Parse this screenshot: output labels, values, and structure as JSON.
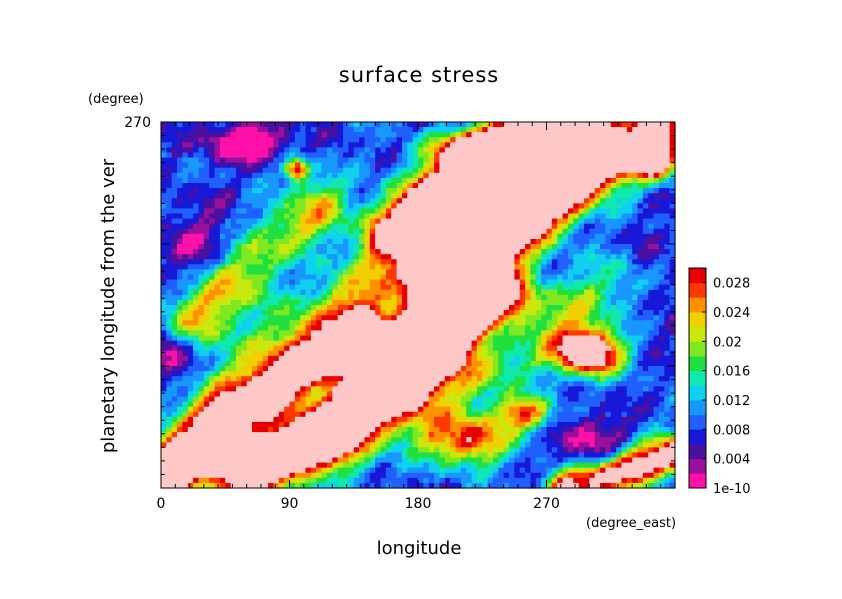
{
  "chart_data": {
    "type": "heatmap",
    "title": "surface stress",
    "xlabel": "longitude",
    "x_units": "(degree_east)",
    "ylabel": "planetary longitude from the ver",
    "y_units": "(degree)",
    "x_ticks": [
      0,
      90,
      180,
      270
    ],
    "x_tick_labels": [
      "0",
      "90",
      "180",
      "270"
    ],
    "y_ticks": [
      270
    ],
    "y_tick_labels": [
      "270"
    ],
    "xlim": [
      0,
      360
    ],
    "ylim": [
      0,
      270
    ],
    "colorbar": {
      "levels": [
        0,
        0.002,
        0.004,
        0.006,
        0.008,
        0.01,
        0.012,
        0.014,
        0.016,
        0.018,
        0.02,
        0.022,
        0.024,
        0.026,
        0.028,
        0.03
      ],
      "colors": [
        "#ff10a8",
        "#9a109c",
        "#4a10a0",
        "#1818d8",
        "#2060ff",
        "#1898ff",
        "#10d0f0",
        "#10e8b0",
        "#20e040",
        "#80e820",
        "#c8e810",
        "#f0d000",
        "#ff9000",
        "#ff3800",
        "#e80000",
        "#ffc8c8"
      ],
      "tick_values": [
        0,
        0.004,
        0.008,
        0.012,
        0.016,
        0.02,
        0.024,
        0.028
      ],
      "tick_labels": [
        "1e-10",
        "0.004",
        "0.008",
        "0.012",
        "0.016",
        "0.02",
        "0.024",
        "0.028"
      ]
    },
    "bands": [
      {
        "x": [
          125,
          290
        ],
        "y": [
          40,
          265
        ],
        "peak": 0.026,
        "width": 18
      },
      {
        "x": [
          195,
          345
        ],
        "y": [
          160,
          265
        ],
        "peak": 0.032,
        "width": 16
      },
      {
        "x": [
          160,
          265
        ],
        "y": [
          190,
          275
        ],
        "peak": 0.031,
        "width": 14
      },
      {
        "x": [
          0,
          140
        ],
        "y": [
          15,
          115
        ],
        "peak": 0.031,
        "width": 13
      },
      {
        "x": [
          60,
          240
        ],
        "y": [
          0,
          140
        ],
        "peak": 0.029,
        "width": 14
      },
      {
        "x": [
          0,
          95
        ],
        "y": [
          10,
          30
        ],
        "peak": 0.024,
        "width": 10
      },
      {
        "x": [
          285,
          360
        ],
        "y": [
          0,
          25
        ],
        "peak": 0.032,
        "width": 10
      },
      {
        "x": [
          20,
          110
        ],
        "y": [
          120,
          205
        ],
        "peak": 0.018,
        "width": 16
      },
      {
        "x": [
          40,
          200
        ],
        "y": [
          60,
          200
        ],
        "peak": 0.015,
        "width": 20
      },
      {
        "x": [
          180,
          320
        ],
        "y": [
          60,
          150
        ],
        "peak": 0.014,
        "width": 18
      }
    ],
    "blobs": [
      {
        "x": 300,
        "y": 100,
        "peak": 0.033,
        "rx": 22,
        "ry": 16
      },
      {
        "x": 235,
        "y": 250,
        "peak": 0.029,
        "rx": 40,
        "ry": 12
      },
      {
        "x": 345,
        "y": 242,
        "peak": 0.03,
        "rx": 14,
        "ry": 12
      },
      {
        "x": 95,
        "y": 235,
        "peak": 0.022,
        "rx": 8,
        "ry": 8
      },
      {
        "x": 205,
        "y": 150,
        "peak": 0.022,
        "rx": 20,
        "ry": 10
      },
      {
        "x": 215,
        "y": 35,
        "peak": 0.02,
        "rx": 30,
        "ry": 18
      },
      {
        "x": 255,
        "y": 55,
        "peak": 0.018,
        "rx": 20,
        "ry": 12
      },
      {
        "x": 60,
        "y": 255,
        "peak": -0.012,
        "rx": 28,
        "ry": 14
      },
      {
        "x": 10,
        "y": 100,
        "peak": -0.012,
        "rx": 18,
        "ry": 22
      },
      {
        "x": 235,
        "y": 115,
        "peak": -0.01,
        "rx": 28,
        "ry": 18
      },
      {
        "x": 300,
        "y": 30,
        "peak": -0.008,
        "rx": 25,
        "ry": 25
      },
      {
        "x": 100,
        "y": 75,
        "peak": -0.007,
        "rx": 40,
        "ry": 20
      },
      {
        "x": 90,
        "y": 165,
        "peak": -0.006,
        "rx": 25,
        "ry": 25
      },
      {
        "x": 330,
        "y": 150,
        "peak": -0.006,
        "rx": 30,
        "ry": 35
      },
      {
        "x": 160,
        "y": 190,
        "peak": -0.006,
        "rx": 40,
        "ry": 20
      },
      {
        "x": 25,
        "y": 180,
        "peak": -0.005,
        "rx": 30,
        "ry": 30
      }
    ]
  }
}
